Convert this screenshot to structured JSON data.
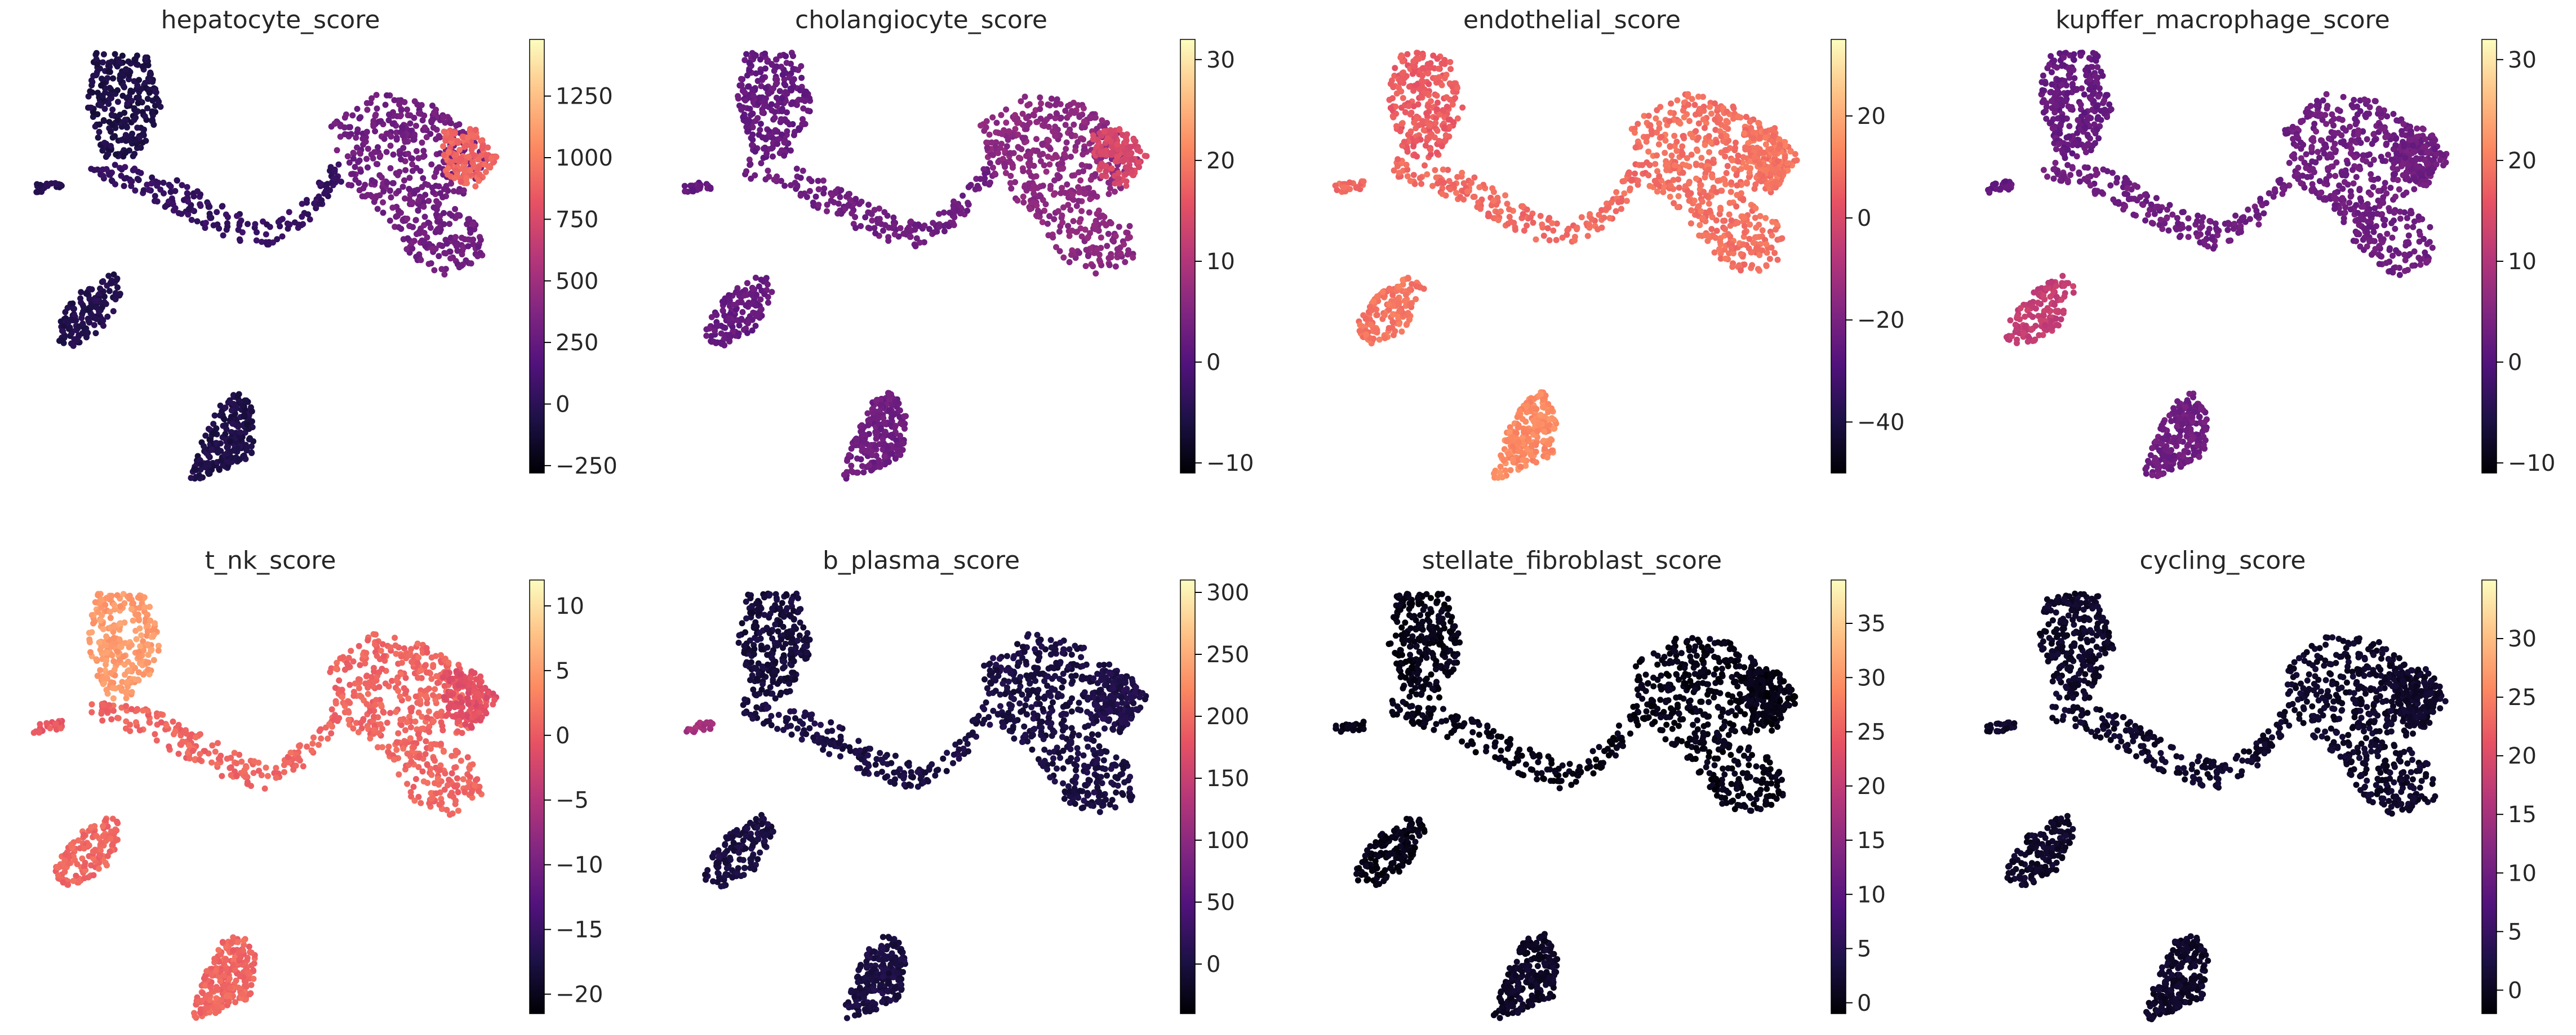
{
  "colormap": "magma",
  "colormap_stops": [
    "#000004",
    "#1d1147",
    "#51127c",
    "#822681",
    "#b73779",
    "#e75263",
    "#fc8961",
    "#fec287",
    "#fcfdbf"
  ],
  "chart_data": [
    {
      "type": "scatter",
      "title": "hepatocyte_score",
      "xlabel": "",
      "ylabel": "",
      "colorbar": {
        "range": [
          -280,
          1480
        ],
        "ticks": [
          -250,
          0,
          250,
          500,
          750,
          1000,
          1250
        ]
      },
      "regions": [
        {
          "cluster": "upper-left lobe",
          "score": -60
        },
        {
          "cluster": "central bridge",
          "score": 40
        },
        {
          "cluster": "right complex",
          "score": 300
        },
        {
          "cluster": "right complex tip",
          "score": 900
        },
        {
          "cluster": "left lobe",
          "score": -40
        },
        {
          "cluster": "bottom lobe",
          "score": -60
        },
        {
          "cluster": "small left islet",
          "score": -40
        }
      ]
    },
    {
      "type": "scatter",
      "title": "cholangiocyte_score",
      "xlabel": "",
      "ylabel": "",
      "colorbar": {
        "range": [
          -11,
          32
        ],
        "ticks": [
          -10,
          0,
          10,
          20,
          30
        ]
      },
      "regions": [
        {
          "cluster": "upper-left lobe",
          "score": 2
        },
        {
          "cluster": "central bridge",
          "score": 3
        },
        {
          "cluster": "right complex",
          "score": 6
        },
        {
          "cluster": "right complex tip",
          "score": 14
        },
        {
          "cluster": "left lobe",
          "score": 2
        },
        {
          "cluster": "bottom lobe",
          "score": 3
        },
        {
          "cluster": "small left islet",
          "score": 2
        }
      ]
    },
    {
      "type": "scatter",
      "title": "endothelial_score",
      "xlabel": "",
      "ylabel": "",
      "colorbar": {
        "range": [
          -50,
          35
        ],
        "ticks": [
          -40,
          -20,
          0,
          20
        ]
      },
      "regions": [
        {
          "cluster": "upper-left lobe",
          "score": 5
        },
        {
          "cluster": "central bridge",
          "score": 8
        },
        {
          "cluster": "right complex",
          "score": 9
        },
        {
          "cluster": "right complex tip",
          "score": 10
        },
        {
          "cluster": "left lobe",
          "score": 10
        },
        {
          "cluster": "bottom lobe",
          "score": 14
        },
        {
          "cluster": "small left islet",
          "score": 8
        }
      ]
    },
    {
      "type": "scatter",
      "title": "kupffer_macrophage_score",
      "xlabel": "",
      "ylabel": "",
      "colorbar": {
        "range": [
          -11,
          32
        ],
        "ticks": [
          -10,
          0,
          10,
          20,
          30
        ]
      },
      "regions": [
        {
          "cluster": "upper-left lobe",
          "score": 2
        },
        {
          "cluster": "central bridge",
          "score": 3
        },
        {
          "cluster": "right complex",
          "score": 3
        },
        {
          "cluster": "right complex tip",
          "score": 3
        },
        {
          "cluster": "left lobe",
          "score": 12
        },
        {
          "cluster": "bottom lobe",
          "score": 3
        },
        {
          "cluster": "small left islet",
          "score": 2
        }
      ]
    },
    {
      "type": "scatter",
      "title": "t_nk_score",
      "xlabel": "",
      "ylabel": "",
      "colorbar": {
        "range": [
          -21.5,
          12
        ],
        "ticks": [
          -20,
          -15,
          -10,
          -5,
          0,
          5,
          10
        ]
      },
      "regions": [
        {
          "cluster": "upper-left lobe",
          "score": 5
        },
        {
          "cluster": "central bridge",
          "score": 1
        },
        {
          "cluster": "right complex",
          "score": 1
        },
        {
          "cluster": "right complex tip",
          "score": -1
        },
        {
          "cluster": "left lobe",
          "score": 1
        },
        {
          "cluster": "bottom lobe",
          "score": 1
        },
        {
          "cluster": "small left islet",
          "score": 0
        }
      ]
    },
    {
      "type": "scatter",
      "title": "b_plasma_score",
      "xlabel": "",
      "ylabel": "",
      "colorbar": {
        "range": [
          -40,
          310
        ],
        "ticks": [
          0,
          50,
          100,
          150,
          200,
          250,
          300
        ]
      },
      "regions": [
        {
          "cluster": "upper-left lobe",
          "score": -5
        },
        {
          "cluster": "central bridge",
          "score": 0
        },
        {
          "cluster": "right complex",
          "score": 0
        },
        {
          "cluster": "right complex tip",
          "score": 5
        },
        {
          "cluster": "left lobe",
          "score": 0
        },
        {
          "cluster": "bottom lobe",
          "score": 0
        },
        {
          "cluster": "small left islet",
          "score": 120
        }
      ]
    },
    {
      "type": "scatter",
      "title": "stellate_fibroblast_score",
      "xlabel": "",
      "ylabel": "",
      "colorbar": {
        "range": [
          -1,
          39
        ],
        "ticks": [
          0,
          5,
          10,
          15,
          20,
          25,
          30,
          35
        ]
      },
      "regions": [
        {
          "cluster": "upper-left lobe",
          "score": 0.3
        },
        {
          "cluster": "central bridge",
          "score": 0.3
        },
        {
          "cluster": "right complex",
          "score": 0.3
        },
        {
          "cluster": "right complex tip",
          "score": 0.3
        },
        {
          "cluster": "left lobe",
          "score": 0.3
        },
        {
          "cluster": "bottom lobe",
          "score": 1.5
        },
        {
          "cluster": "small left islet",
          "score": 0.3
        }
      ]
    },
    {
      "type": "scatter",
      "title": "cycling_score",
      "xlabel": "",
      "ylabel": "",
      "colorbar": {
        "range": [
          -2,
          35
        ],
        "ticks": [
          0,
          5,
          10,
          15,
          20,
          25,
          30
        ]
      },
      "regions": [
        {
          "cluster": "upper-left lobe",
          "score": 0.5
        },
        {
          "cluster": "central bridge",
          "score": 0.5
        },
        {
          "cluster": "right complex",
          "score": 0.5
        },
        {
          "cluster": "right complex tip",
          "score": 0.5
        },
        {
          "cluster": "left lobe",
          "score": 0.5
        },
        {
          "cluster": "bottom lobe",
          "score": 0.5
        },
        {
          "cluster": "small left islet",
          "score": 0.5
        }
      ]
    }
  ]
}
